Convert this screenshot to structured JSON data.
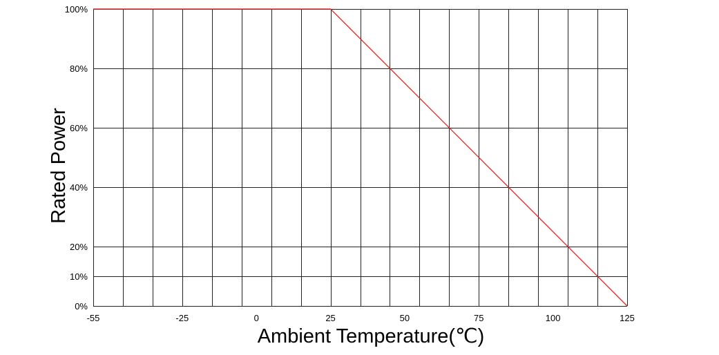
{
  "chart_data": {
    "type": "line",
    "title": "",
    "xlabel": "Ambient Temperature(℃)",
    "ylabel": "Rated Power",
    "xlim": [
      -55,
      125
    ],
    "ylim": [
      0,
      100
    ],
    "x_tick_labels": [
      {
        "value": -55,
        "label": "-55"
      },
      {
        "value": -25,
        "label": "-25"
      },
      {
        "value": 0,
        "label": "0"
      },
      {
        "value": 25,
        "label": "25"
      },
      {
        "value": 50,
        "label": "50"
      },
      {
        "value": 75,
        "label": "75"
      },
      {
        "value": 100,
        "label": "100"
      },
      {
        "value": 125,
        "label": "125"
      }
    ],
    "y_tick_labels": [
      {
        "value": 0,
        "label": "0%"
      },
      {
        "value": 10,
        "label": "10%"
      },
      {
        "value": 20,
        "label": "20%"
      },
      {
        "value": 40,
        "label": "40%"
      },
      {
        "value": 60,
        "label": "60%"
      },
      {
        "value": 80,
        "label": "80%"
      },
      {
        "value": 100,
        "label": "100%"
      }
    ],
    "vertical_gridlines_x": [
      -55,
      -45,
      -35,
      -25,
      -15,
      -5,
      5,
      15,
      25,
      35,
      45,
      55,
      65,
      75,
      85,
      95,
      105,
      115,
      125
    ],
    "horizontal_gridlines_y": [
      0,
      10,
      20,
      40,
      60,
      80,
      100
    ],
    "grid": true,
    "series": [
      {
        "x": [
          -55,
          25,
          125
        ],
        "y": [
          100,
          100,
          0
        ],
        "color": "#e8231f"
      }
    ]
  }
}
